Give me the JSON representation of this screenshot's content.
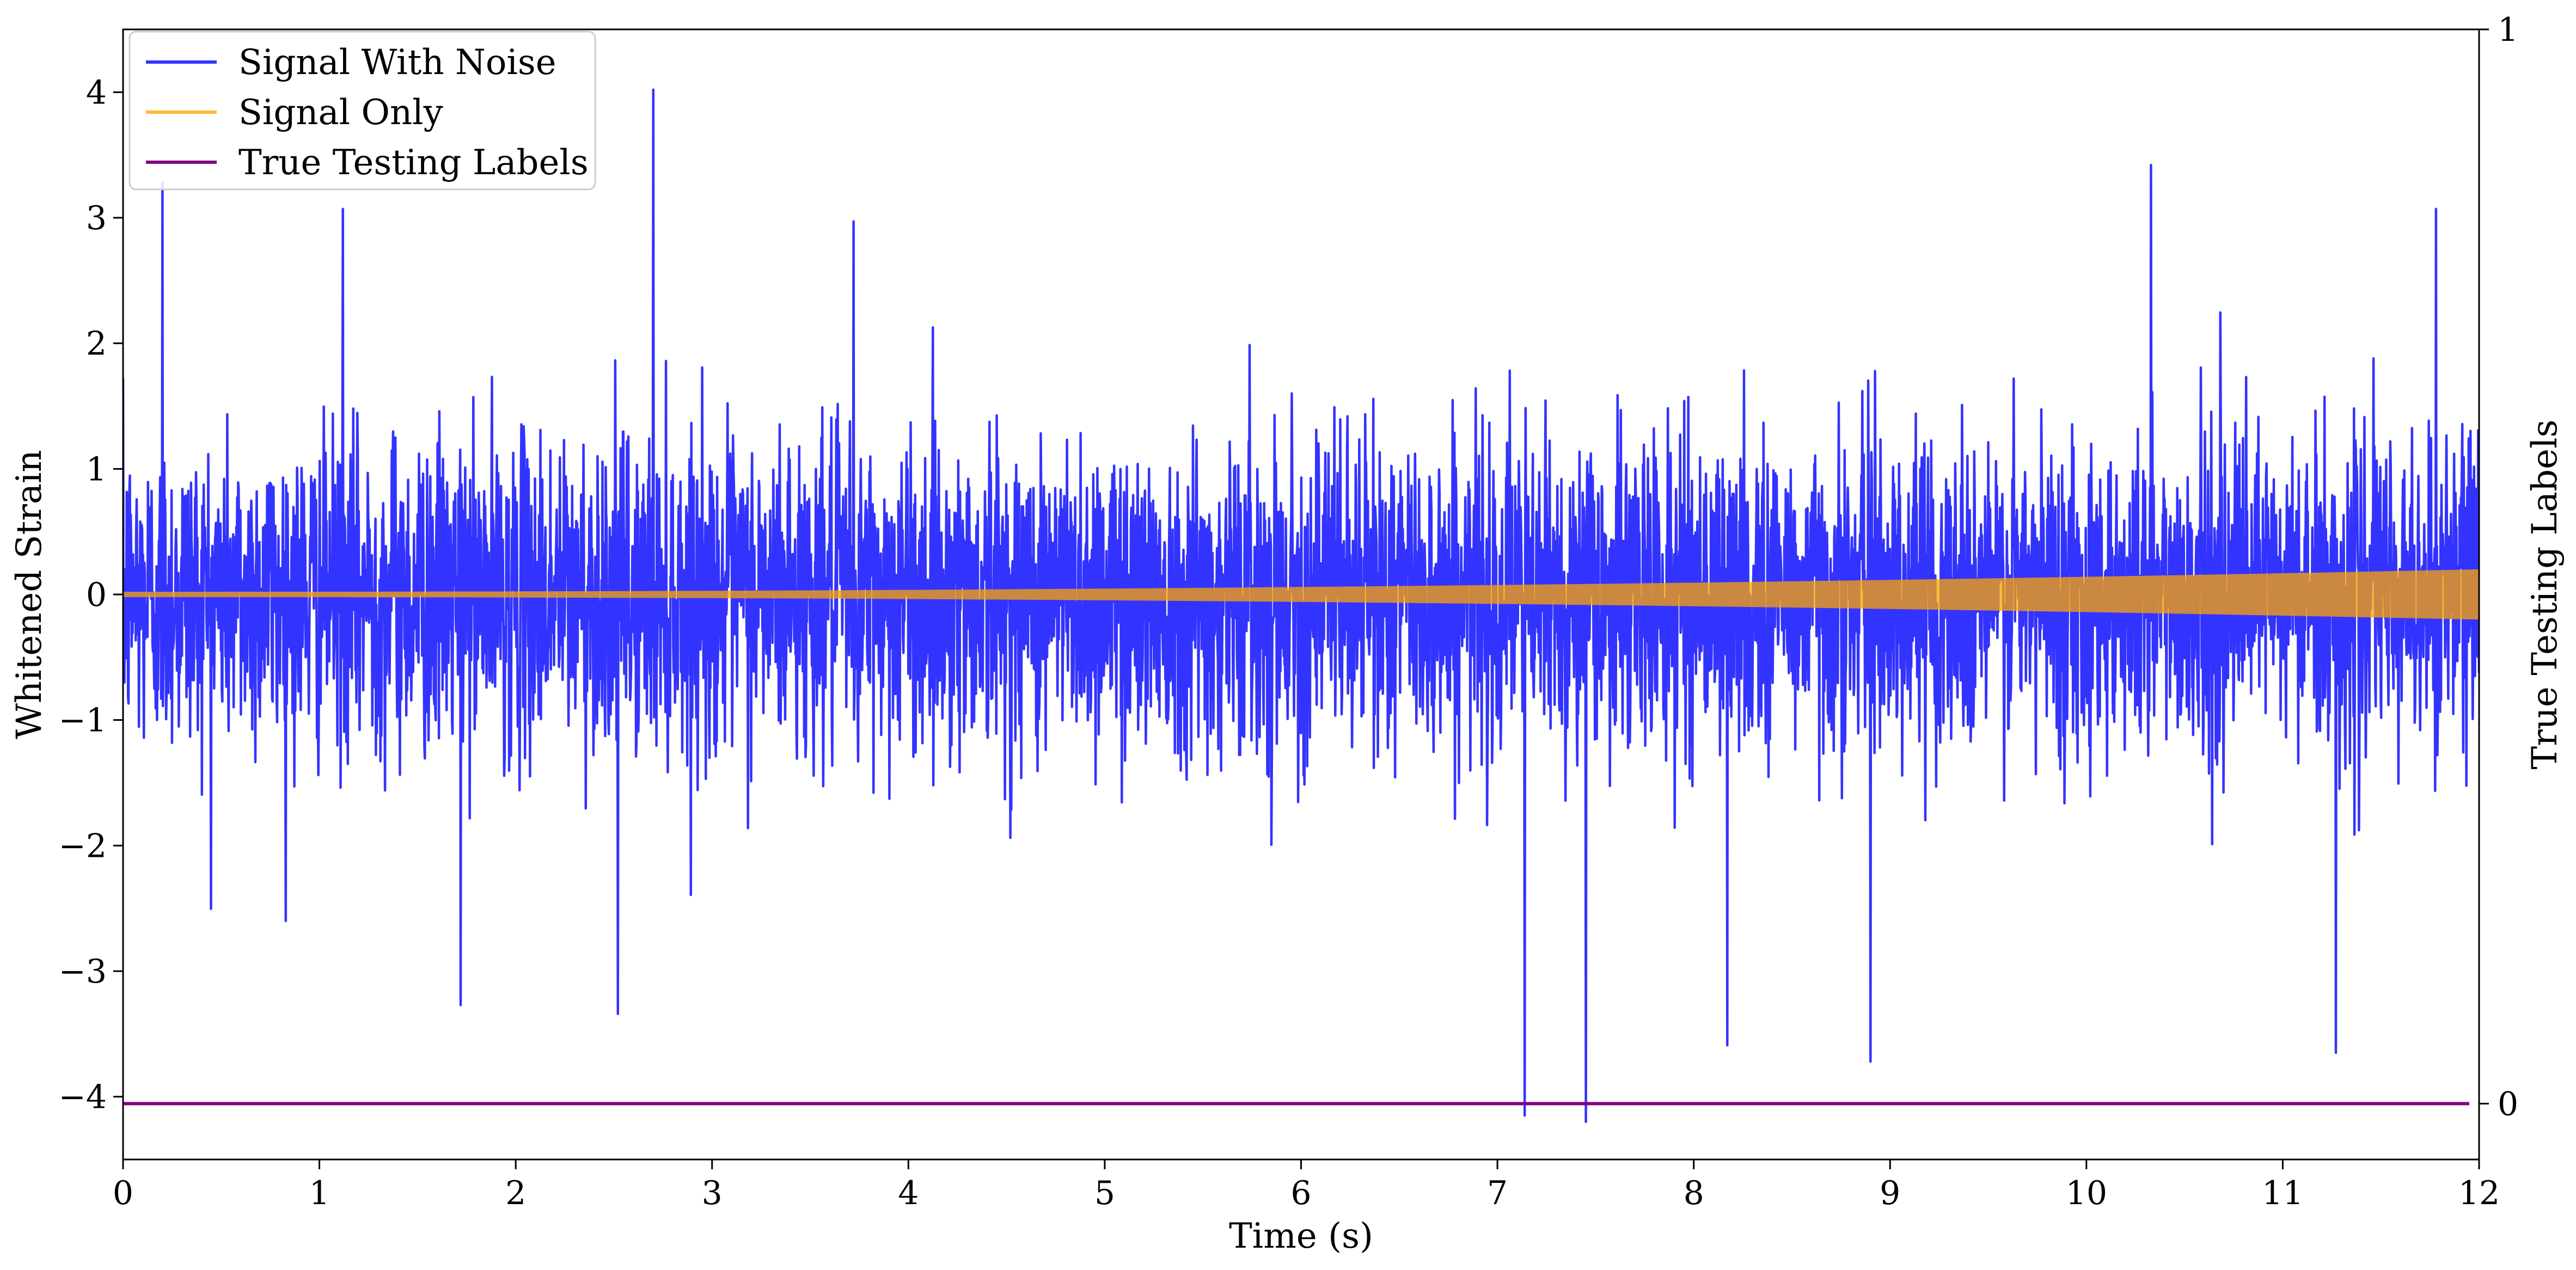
{
  "chart_data": {
    "type": "line",
    "xlabel": "Time (s)",
    "ylabel": "Whitened Strain",
    "y2label": "True Testing Labels",
    "xlim": [
      0,
      12
    ],
    "ylim": [
      -4.5,
      4.5
    ],
    "y2lim": [
      -0.052,
      1.0
    ],
    "x_ticks": [
      0,
      1,
      2,
      3,
      4,
      5,
      6,
      7,
      8,
      9,
      10,
      11,
      12
    ],
    "x_tick_labels": [
      "0",
      "1",
      "2",
      "3",
      "4",
      "5",
      "6",
      "7",
      "8",
      "9",
      "10",
      "11",
      "12"
    ],
    "y_ticks": [
      -4,
      -3,
      -2,
      -1,
      0,
      1,
      2,
      3,
      4
    ],
    "y_tick_labels": [
      "−4",
      "−3",
      "−2",
      "−1",
      "0",
      "1",
      "2",
      "3",
      "4"
    ],
    "y2_ticks": [
      0,
      1
    ],
    "y2_tick_labels": [
      "0",
      "1"
    ],
    "grid": false,
    "legend_position": "top-left",
    "series": [
      {
        "name": "Signal With Noise",
        "color": "#0000ff",
        "kind": "noise",
        "noise_std": 0.62,
        "notable_points": [
          {
            "x": 0.2,
            "y": 3.28
          },
          {
            "x": 1.12,
            "y": 3.07
          },
          {
            "x": 2.7,
            "y": 4.02
          },
          {
            "x": 3.72,
            "y": 2.97
          },
          {
            "x": 10.33,
            "y": 3.42
          },
          {
            "x": 11.78,
            "y": 3.07
          },
          {
            "x": 1.72,
            "y": -3.27
          },
          {
            "x": 2.52,
            "y": -3.34
          },
          {
            "x": 7.14,
            "y": -4.15
          },
          {
            "x": 7.45,
            "y": -4.2
          },
          {
            "x": 8.17,
            "y": -3.59
          },
          {
            "x": 8.9,
            "y": -3.72
          },
          {
            "x": 11.27,
            "y": -3.65
          }
        ]
      },
      {
        "name": "Signal Only",
        "color": "#ffa500",
        "kind": "chirp",
        "amplitude_start": 0.02,
        "amplitude_end": 0.2
      },
      {
        "name": "True Testing Labels",
        "color": "#800080",
        "axis": "right",
        "x": [
          0,
          11.95
        ],
        "y": [
          0,
          0
        ]
      }
    ]
  }
}
